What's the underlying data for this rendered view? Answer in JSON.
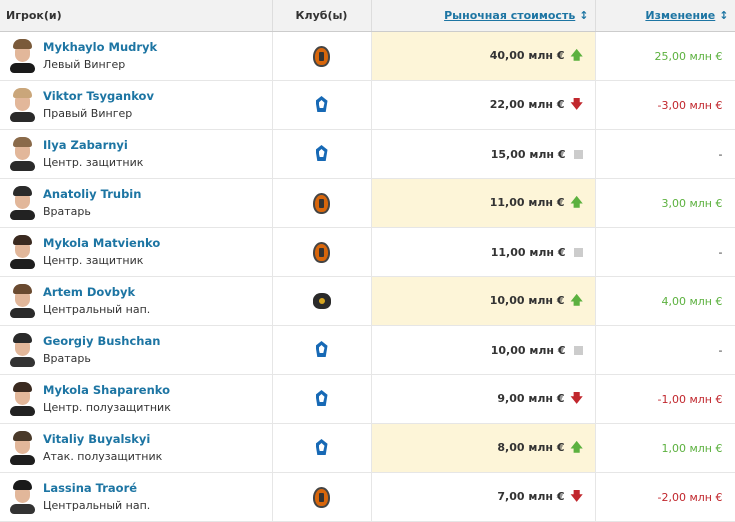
{
  "header": {
    "player": "Игрок(и)",
    "club": "Клуб(ы)",
    "value": "Рыночная стоимость",
    "change": "Изменение"
  },
  "colors": {
    "link": "#1d75a3",
    "highlight": "#fdf5d8",
    "positive": "#5cb13f",
    "negative": "#c1272d",
    "neutral": "#cccccc"
  },
  "rows": [
    {
      "name": "Mykhaylo Mudryk",
      "position": "Левый Вингер",
      "club": "shakhtar",
      "value": "40,00 млн €",
      "trend": "up",
      "change": "25,00 млн €"
    },
    {
      "name": "Viktor Tsygankov",
      "position": "Правый Вингер",
      "club": "dynamo",
      "value": "22,00 млн €",
      "trend": "down",
      "change": "-3,00 млн €"
    },
    {
      "name": "Ilya Zabarnyi",
      "position": "Центр. защитник",
      "club": "dynamo",
      "value": "15,00 млн €",
      "trend": "same",
      "change": "-"
    },
    {
      "name": "Anatoliy Trubin",
      "position": "Вратарь",
      "club": "shakhtar",
      "value": "11,00 млн €",
      "trend": "up",
      "change": "3,00 млн €"
    },
    {
      "name": "Mykola Matvienko",
      "position": "Центр. защитник",
      "club": "shakhtar",
      "value": "11,00 млн €",
      "trend": "same",
      "change": "-"
    },
    {
      "name": "Artem Dovbyk",
      "position": "Центральный нап.",
      "club": "zorya",
      "value": "10,00 млн €",
      "trend": "up",
      "change": "4,00 млн €"
    },
    {
      "name": "Georgiy Bushchan",
      "position": "Вратарь",
      "club": "dynamo",
      "value": "10,00 млн €",
      "trend": "same",
      "change": "-"
    },
    {
      "name": "Mykola Shaparenko",
      "position": "Центр. полузащитник",
      "club": "dynamo",
      "value": "9,00 млн €",
      "trend": "down",
      "change": "-1,00 млн €"
    },
    {
      "name": "Vitaliy Buyalskyi",
      "position": "Атак. полузащитник",
      "club": "dynamo",
      "value": "8,00 млн €",
      "trend": "up",
      "change": "1,00 млн €"
    },
    {
      "name": "Lassina Traoré",
      "position": "Центральный нап.",
      "club": "shakhtar",
      "value": "7,00 млн €",
      "trend": "down",
      "change": "-2,00 млн €"
    }
  ]
}
